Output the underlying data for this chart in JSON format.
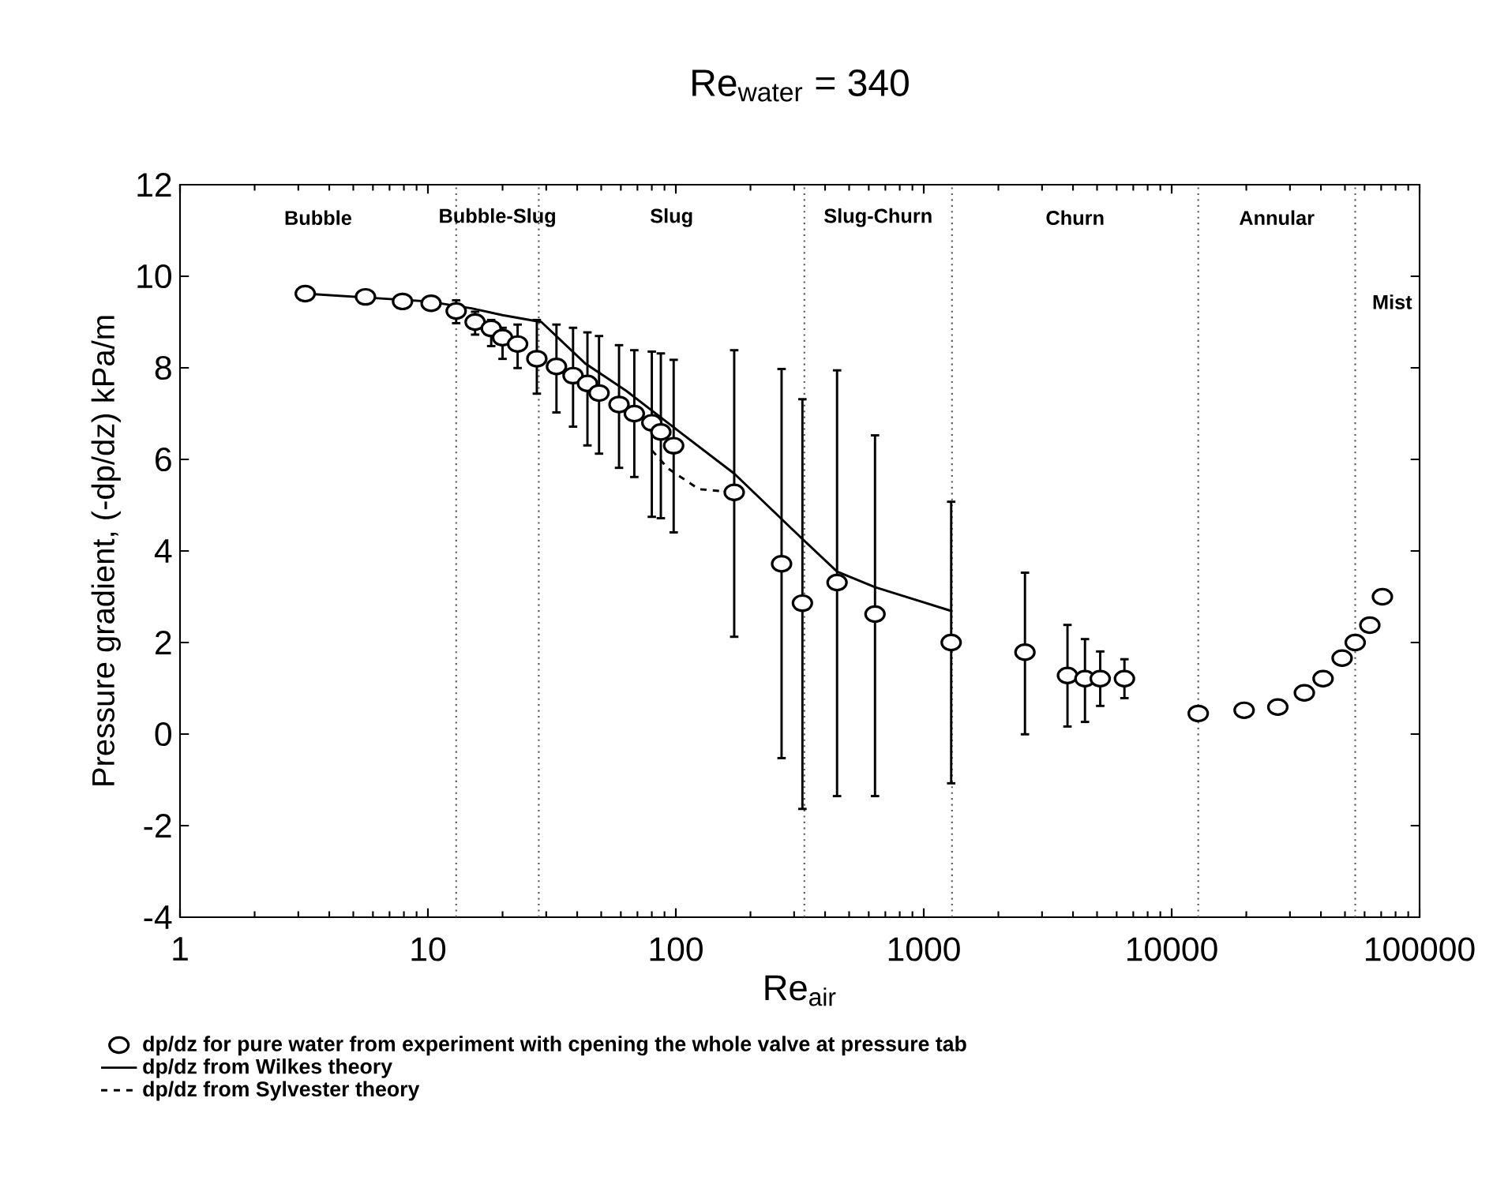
{
  "chart_data": {
    "type": "scatter",
    "title": "Re$_{water}$ = 340",
    "xlabel": "Re$_{air}$",
    "ylabel": "Pressure gradient, (-dp/dz) kPa/m",
    "log": "x",
    "xlim": [
      1,
      100000
    ],
    "xticks": [
      1,
      10,
      100,
      1000,
      10000,
      100000
    ],
    "ylim": [
      -4,
      12
    ],
    "yticks": [
      -4,
      -2,
      0,
      2,
      4,
      6,
      8,
      10,
      12
    ],
    "legend": "bottom",
    "series": [
      {
        "name": "dp/dz for pure water from experiment with cpening the whole valve at pressure tab",
        "type": "scatter",
        "marker": "circle",
        "color": "#000000",
        "x": [
          3.2,
          5.6,
          7.9,
          10.3,
          13,
          15.5,
          18,
          20,
          23,
          27.5,
          33,
          38.5,
          44,
          49,
          59,
          68,
          80,
          87,
          98,
          172,
          267,
          324,
          447,
          636,
          1290,
          2560,
          3800,
          4470,
          5150,
          6450,
          12800,
          19600,
          26800,
          34300,
          40800,
          48700,
          55000,
          63000,
          70800
        ],
        "values": [
          9.62,
          9.55,
          9.45,
          9.41,
          9.24,
          9.0,
          8.86,
          8.66,
          8.52,
          8.2,
          8.03,
          7.83,
          7.66,
          7.45,
          7.2,
          7.0,
          6.8,
          6.6,
          6.3,
          5.28,
          3.72,
          2.86,
          3.31,
          2.62,
          2.0,
          1.79,
          1.28,
          1.21,
          1.21,
          1.21,
          0.45,
          0.52,
          0.59,
          0.9,
          1.21,
          1.66,
          2.0,
          2.38,
          3.0
        ],
        "errors": [
          null,
          null,
          null,
          null,
          [
            8.95,
            9.5
          ],
          [
            8.7,
            9.25
          ],
          [
            8.45,
            9.07
          ],
          [
            8.17,
            8.9
          ],
          [
            7.97,
            8.97
          ],
          [
            7.41,
            9.07
          ],
          [
            7.0,
            8.97
          ],
          [
            6.69,
            8.9
          ],
          [
            6.28,
            8.8
          ],
          [
            6.1,
            8.72
          ],
          [
            5.79,
            8.52
          ],
          [
            5.59,
            8.41
          ],
          [
            4.72,
            8.38
          ],
          [
            4.69,
            8.34
          ],
          [
            4.38,
            8.2
          ],
          [
            2.1,
            8.41
          ],
          [
            -0.55,
            8.0
          ],
          [
            -1.66,
            7.34
          ],
          [
            -1.38,
            7.97
          ],
          [
            -1.38,
            6.55
          ],
          [
            -1.1,
            5.1
          ],
          [
            -0.03,
            3.55
          ],
          [
            0.14,
            2.41
          ],
          [
            0.24,
            2.1
          ],
          [
            0.59,
            1.83
          ],
          [
            0.76,
            1.66
          ],
          null,
          null,
          null,
          null,
          null,
          null,
          null,
          null,
          null
        ]
      },
      {
        "name": "dp/dz from Wilkes theory",
        "type": "line",
        "line_style": "solid",
        "color": "#000000",
        "x": [
          3.2,
          10,
          15,
          20,
          28.7,
          43,
          63,
          98,
          172,
          317,
          447,
          636,
          1290
        ],
        "values": [
          9.62,
          9.45,
          9.3,
          9.15,
          9.0,
          8.1,
          7.5,
          6.7,
          5.69,
          4.31,
          3.55,
          3.21,
          2.69
        ]
      },
      {
        "name": "dp/dz from Sylvester theory",
        "type": "line",
        "line_style": "dashed",
        "color": "#000000",
        "x": [
          80,
          93,
          124,
          172
        ],
        "values": [
          6.2,
          5.8,
          5.35,
          5.28
        ]
      }
    ],
    "ref_lines": [
      {
        "axis": "x",
        "value": 13,
        "line_style": "dotted"
      },
      {
        "axis": "x",
        "value": 28,
        "line_style": "dotted"
      },
      {
        "axis": "x",
        "value": 330,
        "line_style": "dotted"
      },
      {
        "axis": "x",
        "value": 1300,
        "line_style": "dotted"
      },
      {
        "axis": "x",
        "value": 12800,
        "line_style": "dotted"
      },
      {
        "axis": "x",
        "value": 55000,
        "line_style": "dotted"
      }
    ],
    "annotations": [
      "Bubble",
      "Bubble-Slug",
      "Slug",
      "Slug-Churn",
      "Churn",
      "Annular",
      "Mist"
    ]
  }
}
